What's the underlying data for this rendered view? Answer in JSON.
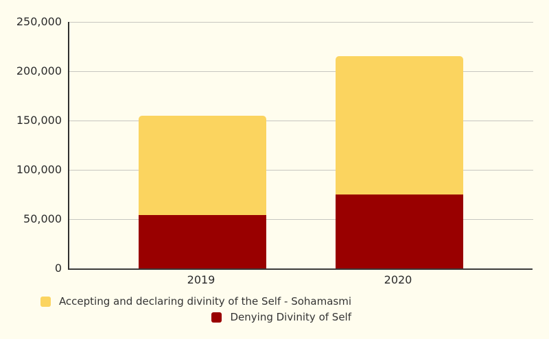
{
  "chart_data": {
    "type": "bar",
    "stacked": true,
    "title": "",
    "xlabel": "",
    "ylabel": "",
    "categories": [
      "2019",
      "2020"
    ],
    "series": [
      {
        "name": "Denying Divinity of Self",
        "color": "#990000",
        "values": [
          54000,
          75000
        ]
      },
      {
        "name": "Accepting and declaring divinity of the Self - Sohamasmi",
        "color": "#FBD45F",
        "values": [
          101000,
          140000
        ]
      }
    ],
    "ylim": [
      0,
      250000
    ],
    "yticks": [
      0,
      50000,
      100000,
      150000,
      200000,
      250000
    ],
    "ytick_labels": [
      "0",
      "50,000",
      "100,000",
      "150,000",
      "200,000",
      "250,000"
    ],
    "grid": true,
    "legend_position": "bottom-left-wrapped-right-aligned"
  },
  "legend": {
    "items": [
      {
        "label": "Accepting and declaring divinity of the Self - Sohamasmi",
        "color": "#FBD45F"
      },
      {
        "label": "Denying Divinity of Self",
        "color": "#990000"
      }
    ]
  },
  "colors": {
    "background": "#FFFDEE",
    "grid": "#C6C6C0",
    "axis": "#333333",
    "text": "#2B2B2B",
    "accepting": "#FBD45F",
    "denying": "#990000"
  }
}
